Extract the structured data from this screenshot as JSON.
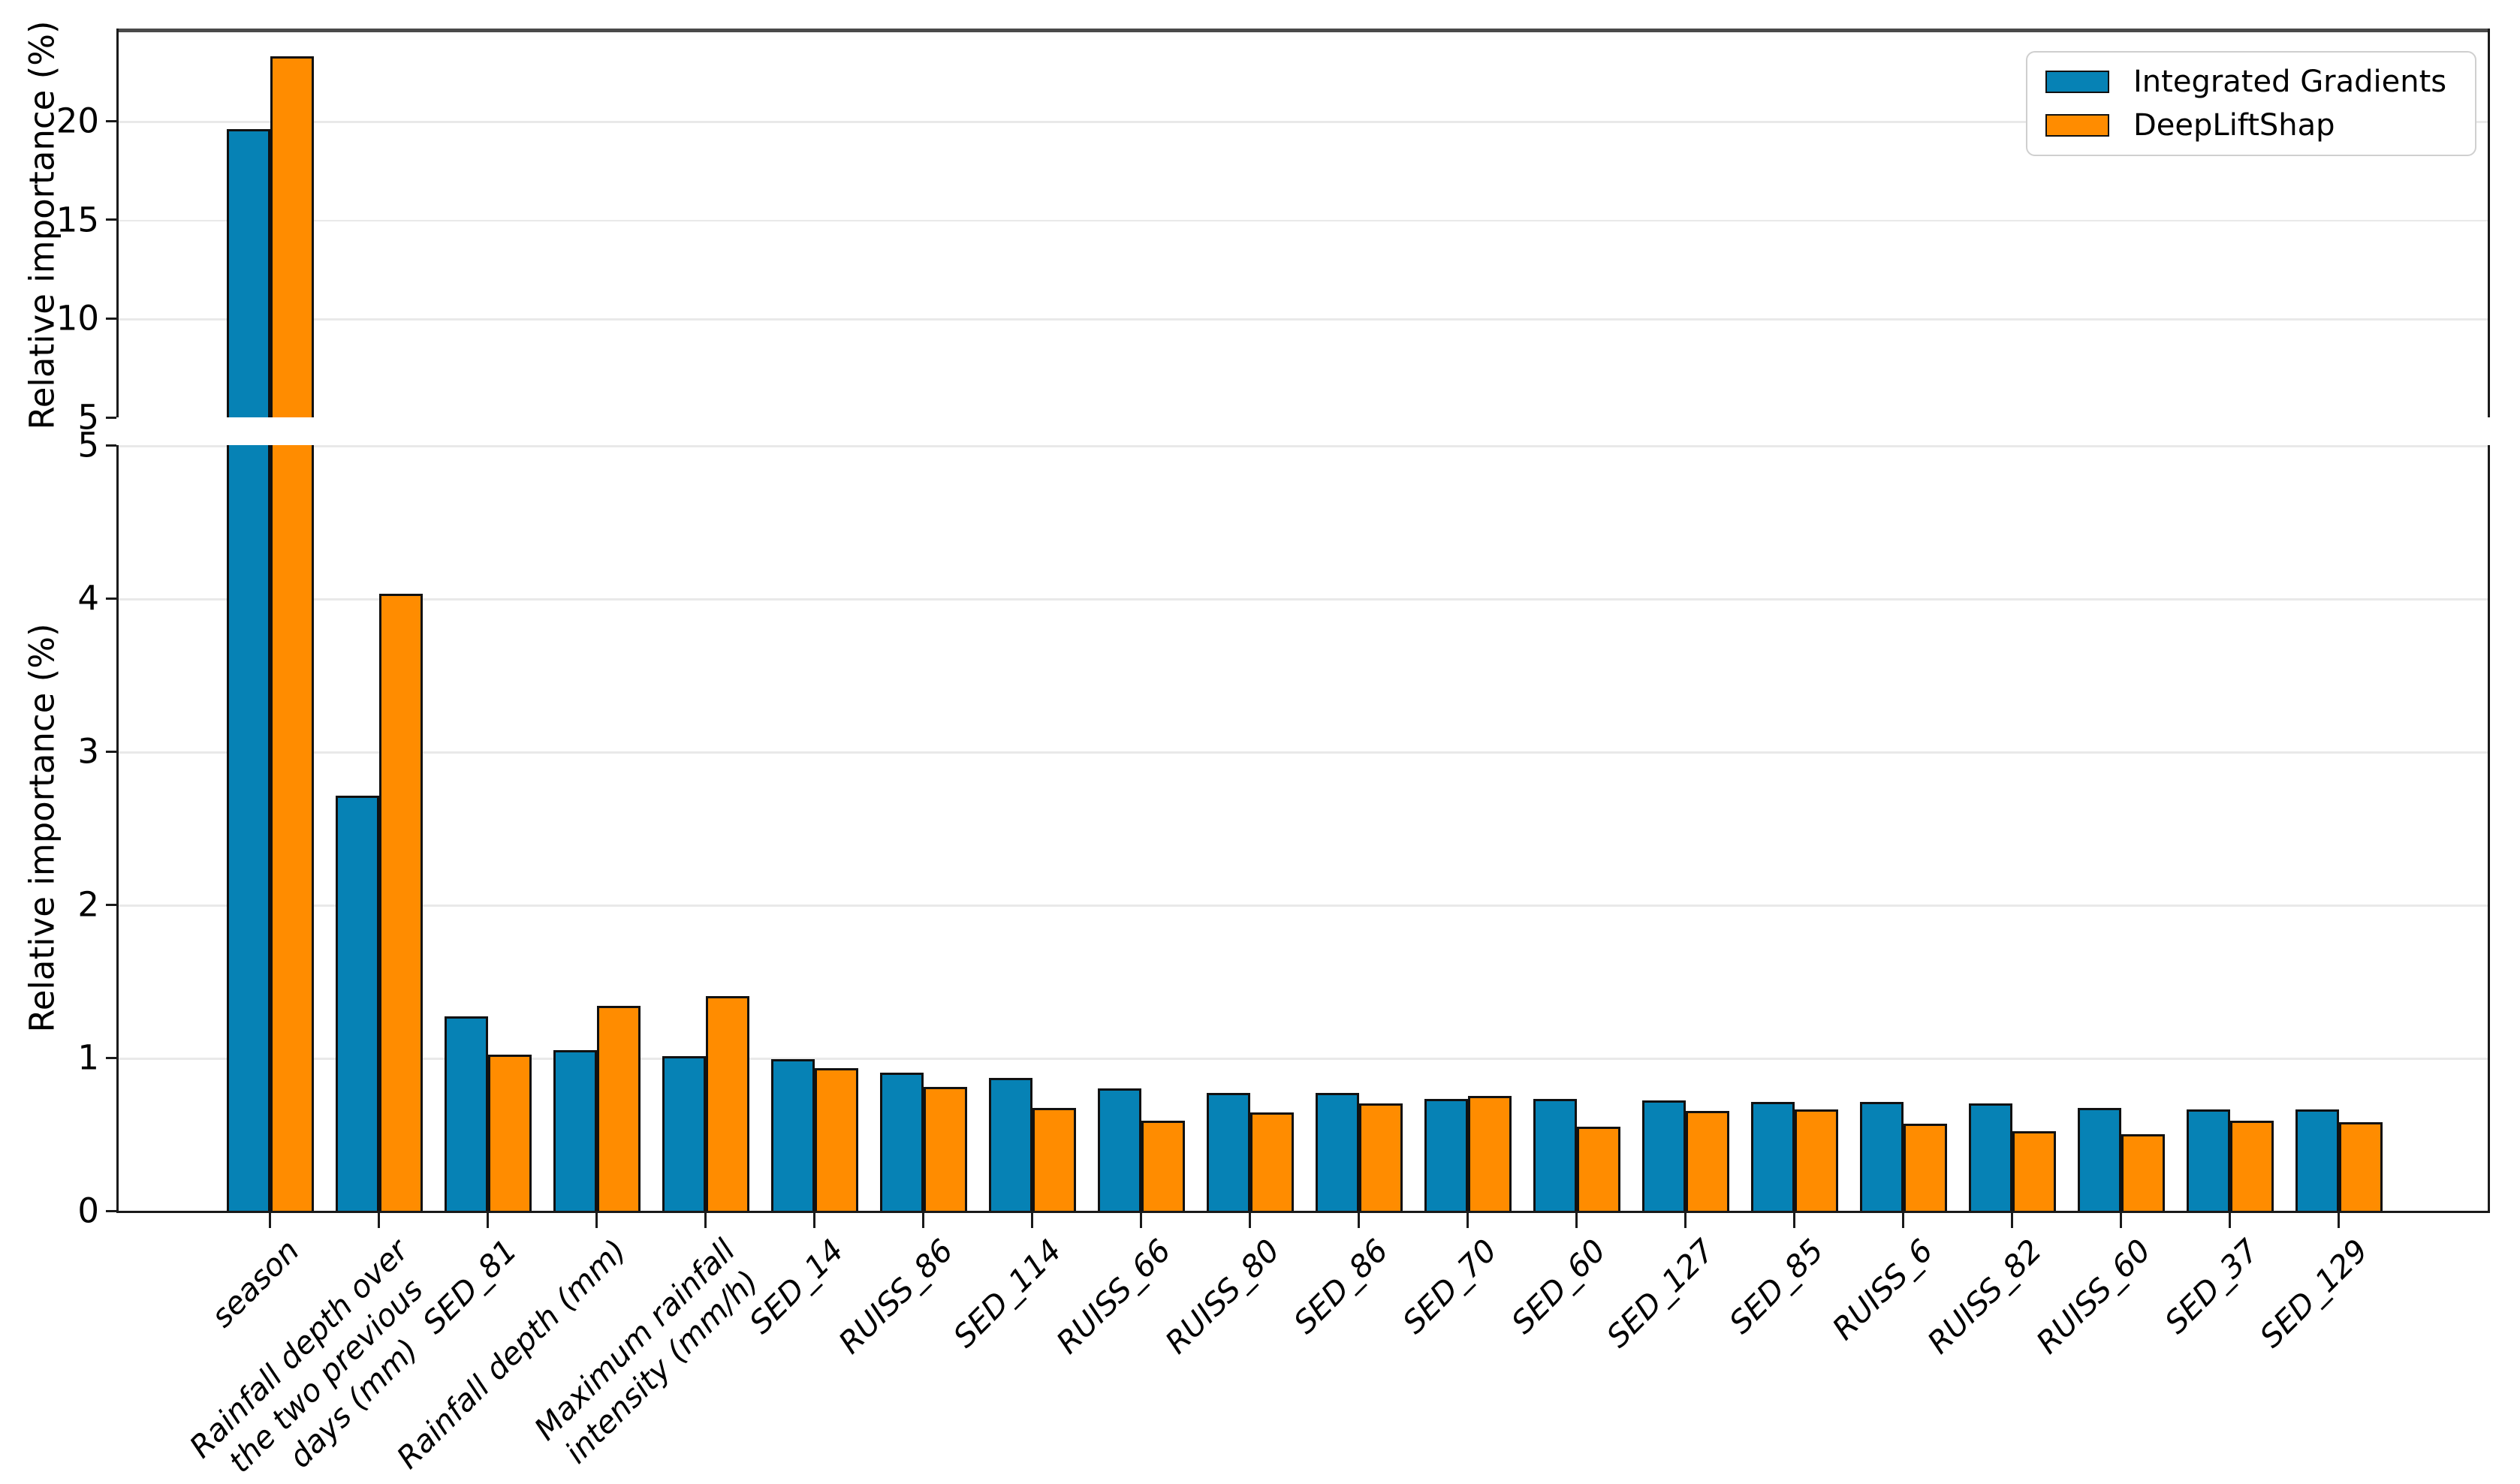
{
  "figure": {
    "background": "#ffffff"
  },
  "chart_data": {
    "type": "bar",
    "grouped": true,
    "title": "",
    "xlabel": "",
    "ylabel": "Relative importance (%)",
    "grid": true,
    "legend_position": "upper right",
    "broken_y_axis": {
      "upper": {
        "range": [
          5,
          24.5
        ],
        "ticks": [
          5,
          10,
          15,
          20
        ]
      },
      "lower": {
        "range": [
          0,
          5
        ],
        "ticks": [
          0,
          1,
          2,
          3,
          4,
          5
        ]
      }
    },
    "categories": [
      "season",
      "Rainfall depth over\nthe two previous\ndays (mm)",
      "SED_81",
      "Rainfall depth (mm)",
      "Maximum rainfall\nintensity (mm/h)",
      "SED_14",
      "RUISS_86",
      "SED_114",
      "RUISS_66",
      "RUISS_80",
      "SED_86",
      "SED_70",
      "SED_60",
      "SED_127",
      "SED_85",
      "RUISS_6",
      "RUISS_82",
      "RUISS_60",
      "SED_37",
      "SED_129"
    ],
    "series": [
      {
        "name": "Integrated Gradients",
        "color": "#0682b5",
        "values": [
          19.6,
          2.71,
          1.27,
          1.05,
          1.01,
          0.99,
          0.9,
          0.87,
          0.8,
          0.77,
          0.77,
          0.73,
          0.73,
          0.72,
          0.71,
          0.71,
          0.7,
          0.67,
          0.66,
          0.66
        ]
      },
      {
        "name": "DeepLiftShap",
        "color": "#ff8c00",
        "values": [
          23.3,
          4.03,
          1.02,
          1.34,
          1.4,
          0.93,
          0.81,
          0.67,
          0.59,
          0.64,
          0.7,
          0.75,
          0.55,
          0.65,
          0.66,
          0.57,
          0.52,
          0.5,
          0.59,
          0.58
        ]
      }
    ],
    "bar_edge_color": "#111111",
    "grid_color": "#e9e9e9",
    "spine_color": "#1a1a1a",
    "top_spine_color": "#4a4a4a"
  }
}
